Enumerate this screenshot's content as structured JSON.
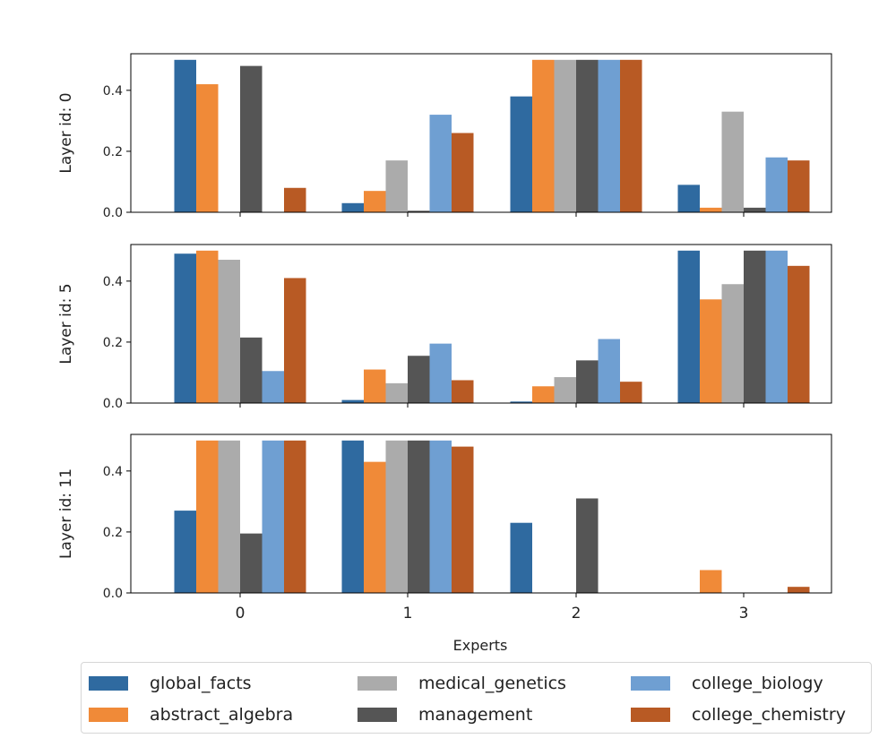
{
  "chart_data": {
    "type": "bar",
    "categories": [
      "0",
      "1",
      "2",
      "3"
    ],
    "xlabel": "Experts",
    "series_names": [
      "global_facts",
      "abstract_algebra",
      "medical_genetics",
      "management",
      "college_biology",
      "college_chemistry"
    ],
    "colors": [
      "#2f6aa0",
      "#f08a38",
      "#ababab",
      "#555555",
      "#6f9fd2",
      "#b85a24"
    ],
    "yticks": [
      "0.0",
      "0.2",
      "0.4"
    ],
    "ylim": [
      0,
      0.52
    ],
    "legend_position": "bottom",
    "panels": [
      {
        "ylabel": "Layer id: 0",
        "series": [
          {
            "name": "global_facts",
            "values": [
              0.5,
              0.03,
              0.38,
              0.09
            ]
          },
          {
            "name": "abstract_algebra",
            "values": [
              0.42,
              0.07,
              0.5,
              0.015
            ]
          },
          {
            "name": "medical_genetics",
            "values": [
              0.0,
              0.17,
              0.5,
              0.33
            ]
          },
          {
            "name": "management",
            "values": [
              0.48,
              0.005,
              0.5,
              0.015
            ]
          },
          {
            "name": "college_biology",
            "values": [
              0.0,
              0.32,
              0.5,
              0.18
            ]
          },
          {
            "name": "college_chemistry",
            "values": [
              0.08,
              0.26,
              0.5,
              0.17
            ]
          }
        ]
      },
      {
        "ylabel": "Layer id: 5",
        "series": [
          {
            "name": "global_facts",
            "values": [
              0.49,
              0.01,
              0.005,
              0.5
            ]
          },
          {
            "name": "abstract_algebra",
            "values": [
              0.5,
              0.11,
              0.055,
              0.34
            ]
          },
          {
            "name": "medical_genetics",
            "values": [
              0.47,
              0.065,
              0.085,
              0.39
            ]
          },
          {
            "name": "management",
            "values": [
              0.215,
              0.155,
              0.14,
              0.5
            ]
          },
          {
            "name": "college_biology",
            "values": [
              0.105,
              0.195,
              0.21,
              0.5
            ]
          },
          {
            "name": "college_chemistry",
            "values": [
              0.41,
              0.075,
              0.07,
              0.45
            ]
          }
        ]
      },
      {
        "ylabel": "Layer id: 11",
        "series": [
          {
            "name": "global_facts",
            "values": [
              0.27,
              0.5,
              0.23,
              0.0
            ]
          },
          {
            "name": "abstract_algebra",
            "values": [
              0.5,
              0.43,
              0.0,
              0.075
            ]
          },
          {
            "name": "medical_genetics",
            "values": [
              0.5,
              0.5,
              0.0,
              0.0
            ]
          },
          {
            "name": "management",
            "values": [
              0.195,
              0.5,
              0.31,
              0.0
            ]
          },
          {
            "name": "college_biology",
            "values": [
              0.5,
              0.5,
              0.0,
              0.0
            ]
          },
          {
            "name": "college_chemistry",
            "values": [
              0.5,
              0.48,
              0.0,
              0.02
            ]
          }
        ]
      }
    ]
  },
  "legend": {
    "items": [
      {
        "label": "global_facts",
        "color": "#2f6aa0"
      },
      {
        "label": "abstract_algebra",
        "color": "#f08a38"
      },
      {
        "label": "medical_genetics",
        "color": "#ababab"
      },
      {
        "label": "management",
        "color": "#555555"
      },
      {
        "label": "college_biology",
        "color": "#6f9fd2"
      },
      {
        "label": "college_chemistry",
        "color": "#b85a24"
      }
    ]
  }
}
